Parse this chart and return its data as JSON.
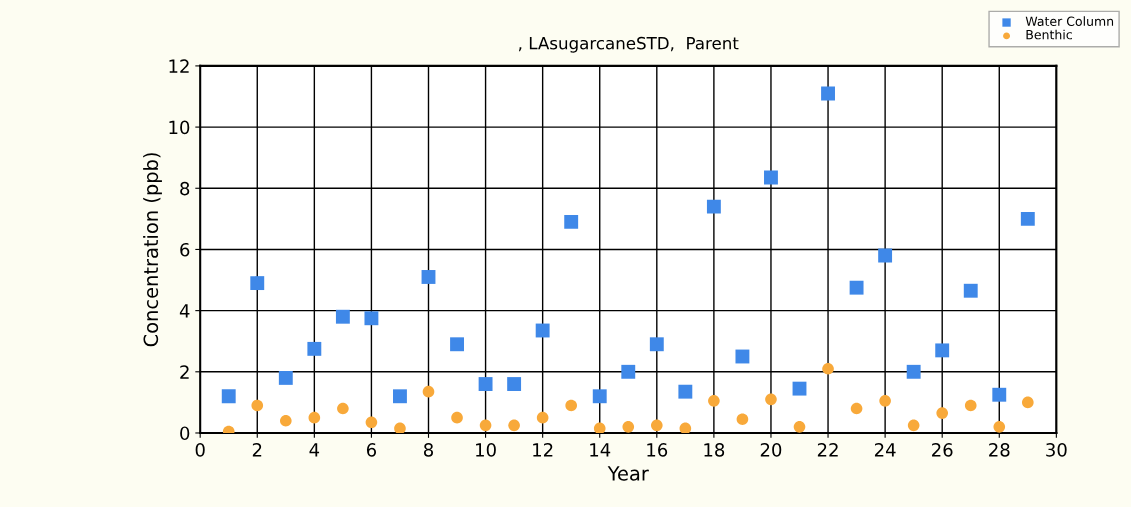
{
  "chart_data": {
    "type": "scatter",
    "title": ", LAsugarcaneSTD,  Parent",
    "xlabel": "Year",
    "ylabel": "Concentration (ppb)",
    "x": [
      1,
      2,
      3,
      4,
      5,
      6,
      7,
      8,
      9,
      10,
      11,
      12,
      13,
      14,
      15,
      16,
      17,
      18,
      19,
      20,
      21,
      22,
      23,
      24,
      25,
      26,
      27,
      28,
      29
    ],
    "series": [
      {
        "name": "Water Column",
        "color": "#3f88e8",
        "marker": "square",
        "values": [
          1.2,
          4.9,
          1.8,
          2.75,
          3.8,
          3.75,
          1.2,
          5.1,
          2.9,
          1.6,
          1.6,
          3.35,
          6.9,
          1.2,
          2.0,
          2.9,
          1.35,
          7.4,
          2.5,
          8.35,
          1.45,
          11.1,
          4.75,
          5.8,
          2.0,
          2.7,
          4.65,
          1.25,
          7.0
        ]
      },
      {
        "name": "Benthic",
        "color": "#f8a93a",
        "marker": "circle",
        "values": [
          0.05,
          0.9,
          0.4,
          0.5,
          0.8,
          0.35,
          0.15,
          1.35,
          0.5,
          0.25,
          0.25,
          0.5,
          0.9,
          0.15,
          0.2,
          0.25,
          0.15,
          1.05,
          0.45,
          1.1,
          0.2,
          2.1,
          0.8,
          1.05,
          0.25,
          0.65,
          0.9,
          0.2,
          1.0
        ]
      }
    ],
    "xlim": [
      0,
      30
    ],
    "xticks": [
      0,
      2,
      4,
      6,
      8,
      10,
      12,
      14,
      16,
      18,
      20,
      22,
      24,
      26,
      28,
      30
    ],
    "ylim": [
      0,
      12
    ],
    "yticks": [
      0,
      2,
      4,
      6,
      8,
      10,
      12
    ],
    "grid": true,
    "legend": "top right"
  }
}
